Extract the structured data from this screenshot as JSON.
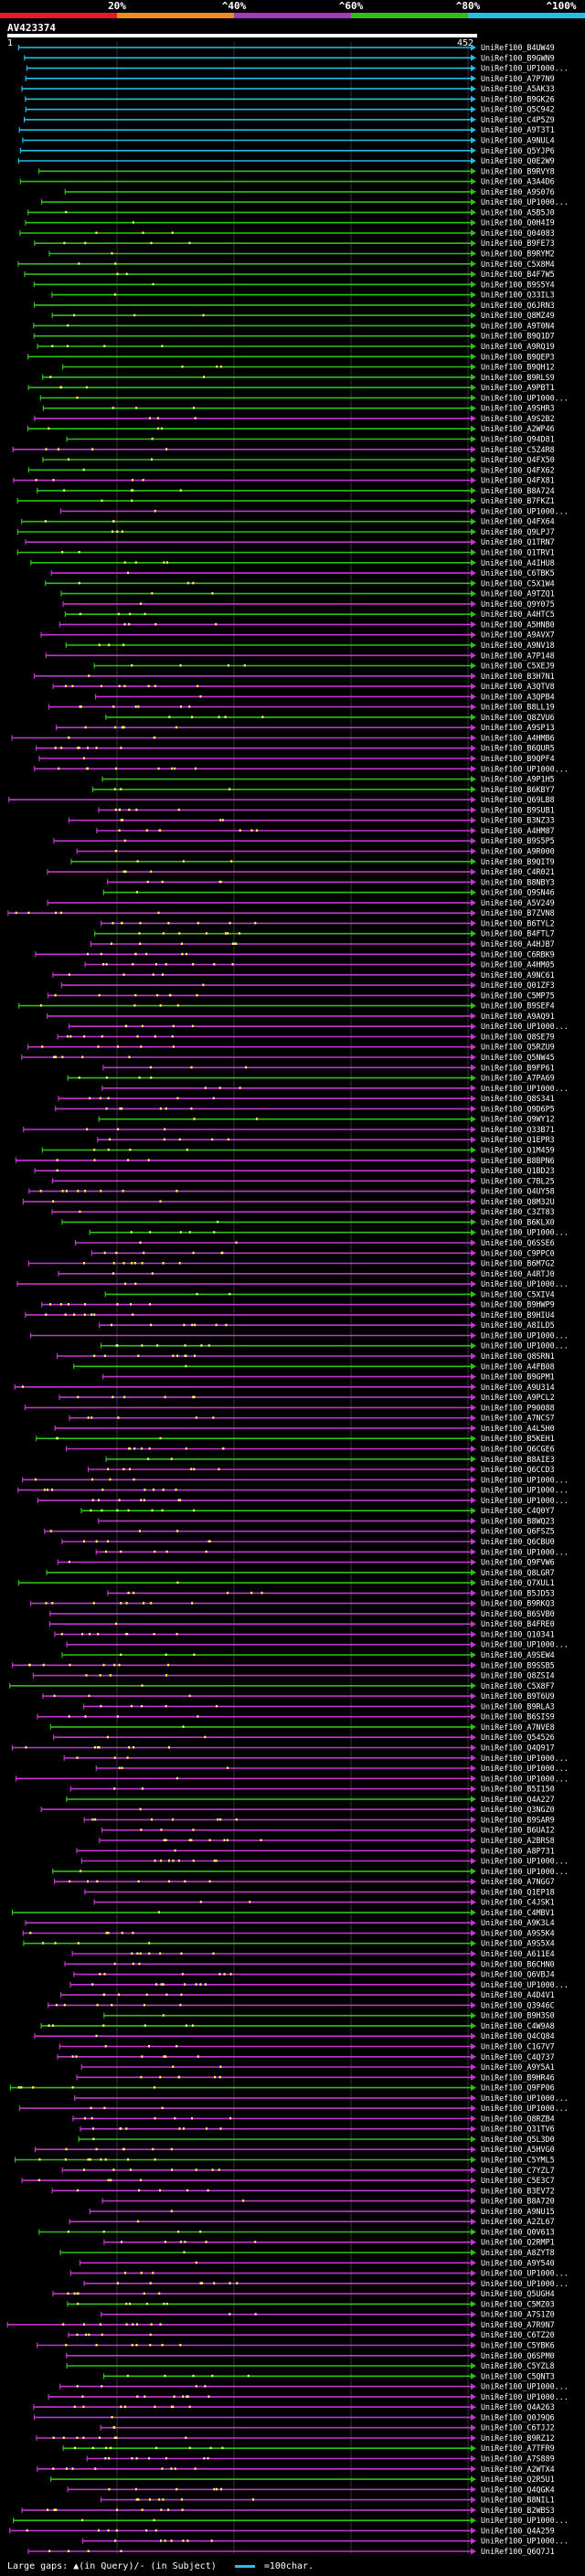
{
  "header": {
    "percent_labels": [
      "20%",
      "^40%",
      "^60%",
      "^80%",
      "^100%"
    ],
    "percent_colors": [
      "#e8192a",
      "#f28a1e",
      "#a238c4",
      "#2fc018",
      "#22bfe6"
    ],
    "query_id": "AV423374",
    "coord_start": "1",
    "coord_end": "452"
  },
  "palette": {
    "cyan": "#22bfe6",
    "green": "#2fc018",
    "purple": "#c236cd",
    "dots": "#ffff66",
    "text": "#ffffff"
  },
  "hits": [
    "UniRef100_B4UW49",
    "UniRef100_B9GWN9",
    "UniRef100_UP1000...",
    "UniRef100_A7P7N9",
    "UniRef100_A5AK33",
    "UniRef100_B9GK26",
    "UniRef100_Q5C942",
    "UniRef100_C4P5Z9",
    "UniRef100_A9T3T1",
    "UniRef100_A9NUL4",
    "UniRef100_Q5YJP6",
    "UniRef100_Q0E2W9",
    "UniRef100_B9RVY8",
    "UniRef100_A3A4D6",
    "UniRef100_A9S076",
    "UniRef100_UP1000...",
    "UniRef100_A5B5J0",
    "UniRef100_Q0H4I9",
    "UniRef100_Q04083",
    "UniRef100_B9FE73",
    "UniRef100_B9RYM2",
    "UniRef100_C5X8M4",
    "UniRef100_B4F7W5",
    "UniRef100_B9S5Y4",
    "UniRef100_Q33IL3",
    "UniRef100_Q6JRN3",
    "UniRef100_Q8MZ49",
    "UniRef100_A9T0N4",
    "UniRef100_B9Q1D7",
    "UniRef100_A9RQ19",
    "UniRef100_B9QEP3",
    "UniRef100_B9QH12",
    "UniRef100_B9RLS9",
    "UniRef100_A9PBT1",
    "UniRef100_UP1000...",
    "UniRef100_A9SHR3",
    "UniRef100_A9S2B2",
    "UniRef100_A2WP46",
    "UniRef100_Q94D81",
    "UniRef100_C5Z4R8",
    "UniRef100_Q4FX50",
    "UniRef100_Q4FX62",
    "UniRef100_Q4FX81",
    "UniRef100_B8A724",
    "UniRef100_B7FKZ1",
    "UniRef100_UP1000...",
    "UniRef100_Q4FX64",
    "UniRef100_Q9LPJ7",
    "UniRef100_Q1TRN7",
    "UniRef100_Q1TRV1",
    "UniRef100_A4IHU8",
    "UniRef100_C6TBK5",
    "UniRef100_C5X1W4",
    "UniRef100_A9TZQ1",
    "UniRef100_Q9Y075",
    "UniRef100_A4HTC5",
    "UniRef100_A5HNB0",
    "UniRef100_A9AVX7",
    "UniRef100_A9NV18",
    "UniRef100_A7P148",
    "UniRef100_C5XEJ9",
    "UniRef100_B3H7N1",
    "UniRef100_A3QTV8",
    "UniRef100_A3QPB4",
    "UniRef100_B8LL19",
    "UniRef100_Q8ZVU6",
    "UniRef100_A9SP13",
    "UniRef100_A4HMB6",
    "UniRef100_B6QUR5",
    "UniRef100_B9QPF4",
    "UniRef100_UP1000...",
    "UniRef100_A9P1H5",
    "UniRef100_B6KBY7",
    "UniRef100_Q69LB8",
    "UniRef100_B9SUB1",
    "UniRef100_B3NZ33",
    "UniRef100_A4HM87",
    "UniRef100_B9S5P5",
    "UniRef100_A9R000",
    "UniRef100_B9QIT9",
    "UniRef100_C4R021",
    "UniRef100_B8NBY3",
    "UniRef100_Q9SN46",
    "UniRef100_A5V249",
    "UniRef100_B7ZVN8",
    "UniRef100_B6TYL2",
    "UniRef100_B4FTL7",
    "UniRef100_A4HJB7",
    "UniRef100_C6RBK9",
    "UniRef100_A4HM05",
    "UniRef100_A9NC61",
    "UniRef100_Q01ZF3",
    "UniRef100_C5MP75",
    "UniRef100_B9SEF4",
    "UniRef100_A9AQ91",
    "UniRef100_UP1000...",
    "UniRef100_Q8SE79",
    "UniRef100_Q5RZU9",
    "UniRef100_Q5NW45",
    "UniRef100_B9FP61",
    "UniRef100_A7PA69",
    "UniRef100_UP1000...",
    "UniRef100_Q8S341",
    "UniRef100_Q9D6P5",
    "UniRef100_Q9WY12",
    "UniRef100_Q33B71",
    "UniRef100_Q1EPR3",
    "UniRef100_Q1M459",
    "UniRef100_B8BPN6",
    "UniRef100_Q1BD23",
    "UniRef100_C7BL25",
    "UniRef100_Q4UY58",
    "UniRef100_Q8M32U",
    "UniRef100_C3ZT83",
    "UniRef100_B6KLX0",
    "UniRef100_UP1000...",
    "UniRef100_Q6SSE6",
    "UniRef100_C9PPC0",
    "UniRef100_B6M7G2",
    "UniRef100_A4RTJ0",
    "UniRef100_UP1000...",
    "UniRef100_C5XIV4",
    "UniRef100_B9HWP9",
    "UniRef100_B9HIU4",
    "UniRef100_A8ILD5",
    "UniRef100_UP1000...",
    "UniRef100_UP1000...",
    "UniRef100_Q8SRN1",
    "UniRef100_A4FB08",
    "UniRef100_B9GPM1",
    "UniRef100_A9U314",
    "UniRef100_A9PCL2",
    "UniRef100_P90088",
    "UniRef100_A7NCS7",
    "UniRef100_A4L5H0",
    "UniRef100_B5KEH1",
    "UniRef100_Q6CGE6",
    "UniRef100_B8AIE3",
    "UniRef100_Q6CCD3",
    "UniRef100_UP1000...",
    "UniRef100_UP1000...",
    "UniRef100_UP1000...",
    "UniRef100_C4Q0Y7",
    "UniRef100_B8WQ23",
    "UniRef100_Q6FSZ5",
    "UniRef100_Q6CBU0",
    "UniRef100_UP1000...",
    "UniRef100_Q9FVW6",
    "UniRef100_Q8LGR7",
    "UniRef100_Q7XUL1",
    "UniRef100_B5JD53",
    "UniRef100_B9RKQ3",
    "UniRef100_B6SVB0",
    "UniRef100_B4FRE0",
    "UniRef100_Q10341",
    "UniRef100_UP1000...",
    "UniRef100_A9SEW4",
    "UniRef100_B9SSB5",
    "UniRef100_Q8ZSI4",
    "UniRef100_C5X8F7",
    "UniRef100_B9T6U9",
    "UniRef100_B9RLA3",
    "UniRef100_B6SIS9",
    "UniRef100_A7NVE8",
    "UniRef100_Q54526",
    "UniRef100_Q4Q917",
    "UniRef100_UP1000...",
    "UniRef100_UP1000...",
    "UniRef100_UP1000...",
    "UniRef100_B5I150",
    "UniRef100_Q4A227",
    "UniRef100_Q3NGZ0",
    "UniRef100_B9SAR9",
    "UniRef100_B6UAI2",
    "UniRef100_A2BRS8",
    "UniRef100_A8P731",
    "UniRef100_UP1000...",
    "UniRef100_UP1000...",
    "UniRef100_A7NGG7",
    "UniRef100_Q1EP18",
    "UniRef100_C4JSK1",
    "UniRef100_C4MBV1",
    "UniRef100_A9K3L4",
    "UniRef100_A9S5K4",
    "UniRef100_A9S5X4",
    "UniRef100_A611E4",
    "UniRef100_B6CHN0",
    "UniRef100_Q6VBJ4",
    "UniRef100_UP1000...",
    "UniRef100_A4D4V1",
    "UniRef100_Q3946C",
    "UniRef100_B9H3S0",
    "UniRef100_C4W9A8",
    "UniRef100_Q4CQ84",
    "UniRef100_C1G7V7",
    "UniRef100_C4Q737",
    "UniRef100_A9Y5A1",
    "UniRef100_B9HR46",
    "UniRef100_Q9FP06",
    "UniRef100_UP1000...",
    "UniRef100_UP1000...",
    "UniRef100_Q8RZB4",
    "UniRef100_Q31TV6",
    "UniRef100_Q5L3D0",
    "UniRef100_A5HVG0",
    "UniRef100_C5YML5",
    "UniRef100_C7YZL7",
    "UniRef100_C5E3C7",
    "UniRef100_B3EV72",
    "UniRef100_B8A720",
    "UniRef100_A9NU15",
    "UniRef100_A2ZL67",
    "UniRef100_Q0V613",
    "UniRef100_Q2RMP1",
    "UniRef100_A8ZYT8",
    "UniRef100_A9Y540",
    "UniRef100_UP1000...",
    "UniRef100_UP1000...",
    "UniRef100_Q5UGH4",
    "UniRef100_C5MZ03",
    "UniRef100_A7S1Z0",
    "UniRef100_A7R9N7",
    "UniRef100_C6TZ20",
    "UniRef100_C5YBK6",
    "UniRef100_Q6SPM0",
    "UniRef100_C5YZL8",
    "UniRef100_C5QNT3",
    "UniRef100_UP1000...",
    "UniRef100_UP1000...",
    "UniRef100_Q4A263",
    "UniRef100_Q0J9Q6",
    "UniRef100_C6TJJ2",
    "UniRef100_B9RZ12",
    "UniRef100_A7TFR9",
    "UniRef100_A7S889",
    "UniRef100_A2WTX4",
    "UniRef100_Q2R5U1",
    "UniRef100_Q4QGK4",
    "UniRef100_B8NIL1",
    "UniRef100_B2WBS3",
    "UniRef100_UP1000...",
    "UniRef100_Q4A259",
    "UniRef100_UP1000...",
    "UniRef100_Q6Q7J1"
  ],
  "footer": {
    "text": "Large gaps: ▲(in Query)/- (in Subject)",
    "scale": "=100char."
  }
}
